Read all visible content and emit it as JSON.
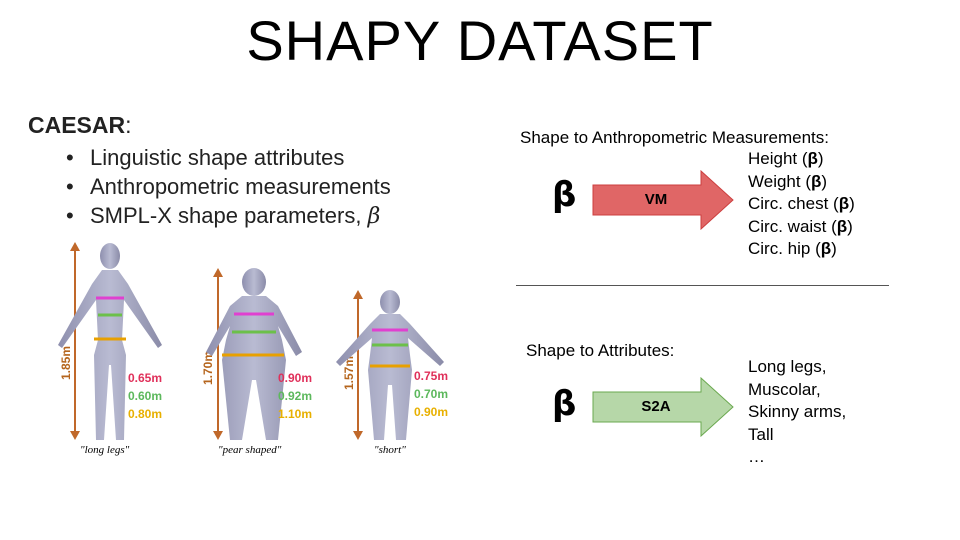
{
  "title": "SHAPY DATASET",
  "caesar": {
    "heading": "CAESAR",
    "colon": ":",
    "bullets": [
      "Linguistic shape attributes",
      "Anthropometric measurements",
      "SMPL-X shape parameters,"
    ],
    "beta_symbol": "β"
  },
  "figures": [
    {
      "label": "\"long legs\"",
      "height": "1.85m",
      "measurements": [
        "0.65m",
        "0.60m",
        "0.80m"
      ]
    },
    {
      "label": "\"pear shaped\"",
      "height": "1.70m",
      "measurements": [
        "0.90m",
        "0.92m",
        "1.10m"
      ]
    },
    {
      "label": "\"short\"",
      "height": "1.57m",
      "measurements": [
        "0.75m",
        "0.70m",
        "0.90m"
      ]
    }
  ],
  "measurement_colors": [
    "#e0305a",
    "#5cb85c",
    "#e8b000"
  ],
  "vm": {
    "heading": "Shape to Anthropometric Measurements:",
    "beta": "β",
    "arrow_label": "VM",
    "arrow_color": "#e06666",
    "outputs": [
      {
        "text": "Height (",
        "beta": "β",
        "end": ")"
      },
      {
        "text": "Weight (",
        "beta": "β",
        "end": ")"
      },
      {
        "text": "Circ. chest (",
        "beta": "β",
        "end": ")"
      },
      {
        "text": "Circ. waist (",
        "beta": "β",
        "end": ")"
      },
      {
        "text": "Circ. hip (",
        "beta": "β",
        "end": ")"
      }
    ]
  },
  "s2a": {
    "heading": "Shape to Attributes:",
    "beta": "β",
    "arrow_label": "S2A",
    "arrow_color": "#b6d7a8",
    "outputs": [
      "Long legs,",
      "Muscolar,",
      "Skinny arms,",
      "Tall",
      "…"
    ]
  }
}
